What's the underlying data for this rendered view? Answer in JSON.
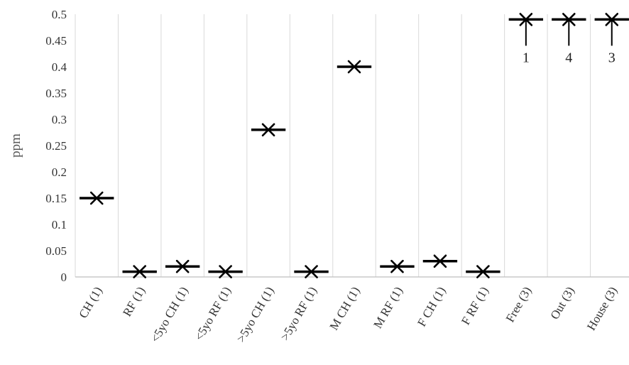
{
  "chart_data": {
    "type": "box",
    "ylabel": "ppm",
    "xlabel": "",
    "ylim": [
      0,
      0.5
    ],
    "yticks": [
      "0",
      "0.05",
      "0.1",
      "0.15",
      "0.2",
      "0.25",
      "0.3",
      "0.35",
      "0.4",
      "0.45",
      "0.5"
    ],
    "ytick_values": [
      0,
      0.05,
      0.1,
      0.15,
      0.2,
      0.25,
      0.3,
      0.35,
      0.4,
      0.45,
      0.5
    ],
    "grid": "vertical",
    "legend": "none",
    "categories": [
      "CH (1)",
      "RF (1)",
      "<5yo CH (1)",
      "<5yo RF (1)",
      ">5yo CH (1)",
      ">5yo RF (1)",
      "M CH (1)",
      "M RF (1)",
      "F CH (1)",
      "F RF (1)",
      "Free (3)",
      "Out (3)",
      "House (3)"
    ],
    "values": [
      0.15,
      0.01,
      0.02,
      0.01,
      0.28,
      0.01,
      0.4,
      0.02,
      0.03,
      0.01,
      0.49,
      0.49,
      0.49
    ],
    "whisker_low": [
      null,
      null,
      null,
      null,
      null,
      null,
      null,
      null,
      null,
      null,
      0.44,
      0.44,
      0.44
    ],
    "annotations": [
      {
        "category": "Free (3)",
        "text": "1"
      },
      {
        "category": "Out (3)",
        "text": "4"
      },
      {
        "category": "House (3)",
        "text": "3"
      }
    ],
    "colors": {
      "marker": "#000000",
      "grid": "#d9d9d9",
      "text": "#333333"
    }
  }
}
